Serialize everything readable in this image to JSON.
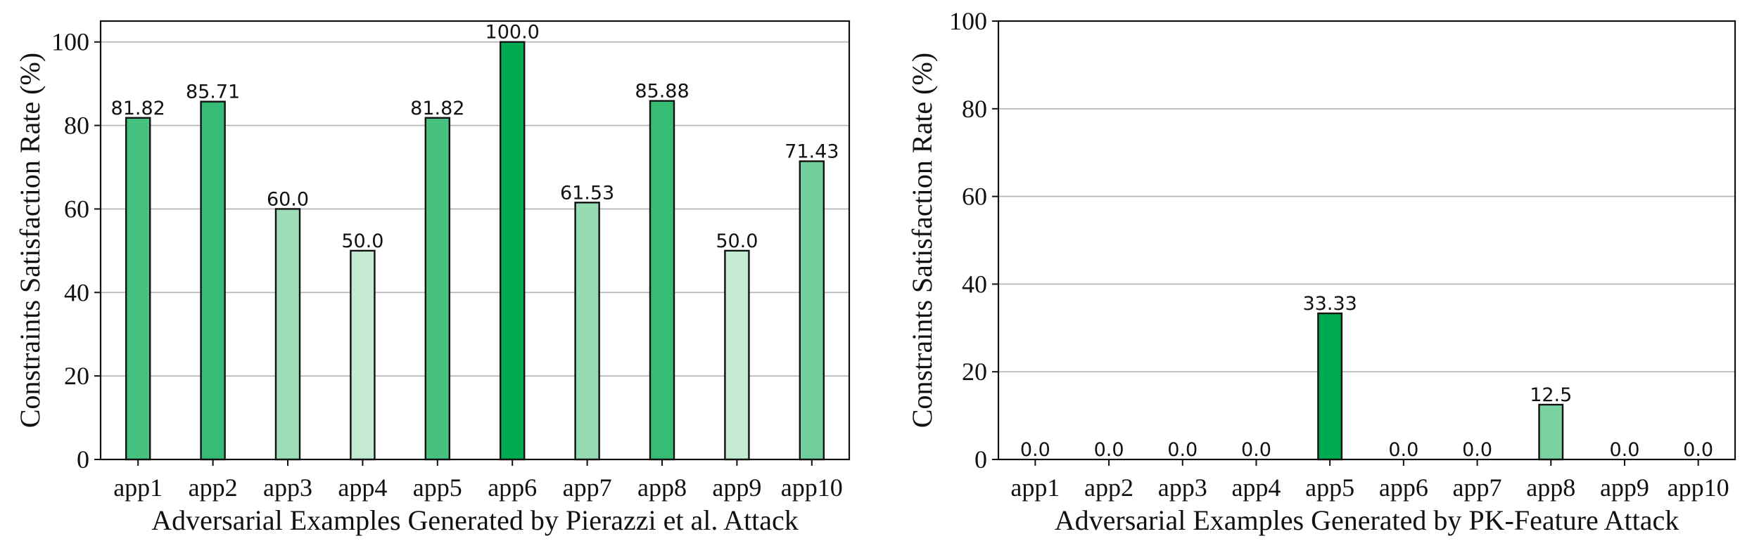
{
  "chart_data": [
    {
      "type": "bar",
      "categories": [
        "app1",
        "app2",
        "app3",
        "app4",
        "app5",
        "app6",
        "app7",
        "app8",
        "app9",
        "app10"
      ],
      "values": [
        81.82,
        85.71,
        60.0,
        50.0,
        81.82,
        100.0,
        61.53,
        85.88,
        50.0,
        71.43
      ],
      "value_labels": [
        "81.82",
        "85.71",
        "60.0",
        "50.0",
        "81.82",
        "100.0",
        "61.53",
        "85.88",
        "50.0",
        "71.43"
      ],
      "xlabel": "Adversarial Examples Generated by Pierazzi et al. Attack",
      "ylabel": "Constraints Satisfaction Rate (%)",
      "ylim": [
        0,
        105
      ],
      "yticks": [
        0,
        20,
        40,
        60,
        80,
        100
      ],
      "grid": "horizontal",
      "color_scale": {
        "light": "#c4ead1",
        "dark": "#00aa50"
      }
    },
    {
      "type": "bar",
      "categories": [
        "app1",
        "app2",
        "app3",
        "app4",
        "app5",
        "app6",
        "app7",
        "app8",
        "app9",
        "app10"
      ],
      "values": [
        0.0,
        0.0,
        0.0,
        0.0,
        33.33,
        0.0,
        0.0,
        12.5,
        0.0,
        0.0
      ],
      "value_labels": [
        "0.0",
        "0.0",
        "0.0",
        "0.0",
        "33.33",
        "0.0",
        "0.0",
        "12.5",
        "0.0",
        "0.0"
      ],
      "xlabel": "Adversarial Examples Generated by PK-Feature Attack",
      "ylabel": "Constraints Satisfaction Rate (%)",
      "ylim": [
        0,
        100
      ],
      "yticks": [
        0,
        20,
        40,
        60,
        80,
        100
      ],
      "grid": "horizontal",
      "color_scale": {
        "light": "#c4ead1",
        "dark": "#00aa50"
      }
    }
  ]
}
